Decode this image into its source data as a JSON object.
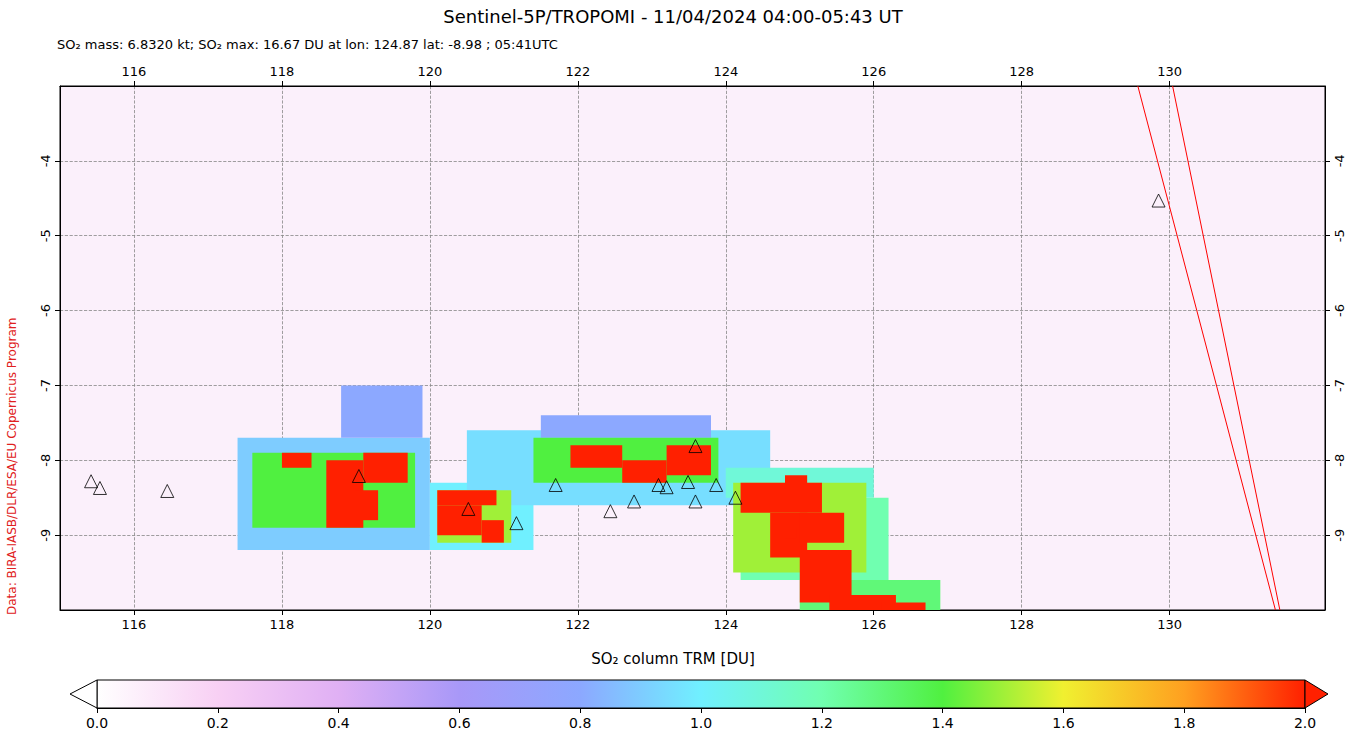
{
  "chart_data": {
    "type": "heatmap",
    "title": "Sentinel-5P/TROPOMI - 11/04/2024 04:00-05:43 UT",
    "subtitle": "SO₂ mass: 6.8320 kt; SO₂ max: 16.67 DU at lon: 124.87 lat: -8.98 ; 05:41UTC",
    "source": "Data: BIRA-IASB/DLR/ESA/EU Copernicus Program",
    "xlim": [
      115,
      132.1
    ],
    "ylim": [
      -10,
      -3
    ],
    "xticks": [
      116,
      118,
      120,
      122,
      124,
      126,
      128,
      130
    ],
    "yticks": [
      -4,
      -5,
      -6,
      -7,
      -8,
      -9
    ],
    "cells": [
      {
        "lon": [
          117.4,
          120.0
        ],
        "lat": [
          -9.2,
          -7.7
        ],
        "value": 0.9
      },
      {
        "lon": [
          118.8,
          119.9
        ],
        "lat": [
          -7.7,
          -7.0
        ],
        "value": 0.8
      },
      {
        "lon": [
          120.0,
          121.4
        ],
        "lat": [
          -9.2,
          -8.3
        ],
        "value": 1.0
      },
      {
        "lon": [
          120.5,
          124.6
        ],
        "lat": [
          -8.6,
          -7.6
        ],
        "value": 0.95
      },
      {
        "lon": [
          121.5,
          123.8
        ],
        "lat": [
          -7.7,
          -7.4
        ],
        "value": 0.8
      },
      {
        "lon": [
          124.0,
          126.0
        ],
        "lat": [
          -8.5,
          -8.1
        ],
        "value": 1.1
      },
      {
        "lon": [
          124.2,
          126.2
        ],
        "lat": [
          -9.6,
          -8.5
        ],
        "value": 1.2
      },
      {
        "lon": [
          125.0,
          126.9
        ],
        "lat": [
          -10.0,
          -9.6
        ],
        "value": 1.3
      },
      {
        "lon": [
          117.6,
          119.8
        ],
        "lat": [
          -8.9,
          -7.9
        ],
        "value": 1.4
      },
      {
        "lon": [
          120.1,
          121.1
        ],
        "lat": [
          -9.1,
          -8.4
        ],
        "value": 1.5
      },
      {
        "lon": [
          121.4,
          123.9
        ],
        "lat": [
          -8.3,
          -7.7
        ],
        "value": 1.4
      },
      {
        "lon": [
          124.1,
          125.9
        ],
        "lat": [
          -9.5,
          -8.3
        ],
        "value": 1.5
      },
      {
        "lon": [
          118.0,
          118.4
        ],
        "lat": [
          -8.1,
          -7.9
        ],
        "value": 2.4
      },
      {
        "lon": [
          118.6,
          119.1
        ],
        "lat": [
          -8.9,
          -8.0
        ],
        "value": 3.2
      },
      {
        "lon": [
          119.1,
          119.7
        ],
        "lat": [
          -8.3,
          -7.9
        ],
        "value": 3.0
      },
      {
        "lon": [
          119.0,
          119.3
        ],
        "lat": [
          -8.8,
          -8.4
        ],
        "value": 2.5
      },
      {
        "lon": [
          120.1,
          120.9
        ],
        "lat": [
          -8.6,
          -8.4
        ],
        "value": 3.5
      },
      {
        "lon": [
          120.1,
          120.7
        ],
        "lat": [
          -9.0,
          -8.6
        ],
        "value": 4.2
      },
      {
        "lon": [
          120.7,
          121.0
        ],
        "lat": [
          -9.1,
          -8.8
        ],
        "value": 2.6
      },
      {
        "lon": [
          121.9,
          122.6
        ],
        "lat": [
          -8.1,
          -7.8
        ],
        "value": 3.1
      },
      {
        "lon": [
          122.6,
          123.2
        ],
        "lat": [
          -8.3,
          -8.0
        ],
        "value": 2.8
      },
      {
        "lon": [
          123.2,
          123.8
        ],
        "lat": [
          -8.2,
          -7.8
        ],
        "value": 3.3
      },
      {
        "lon": [
          124.8,
          125.1
        ],
        "lat": [
          -8.4,
          -8.2
        ],
        "value": 2.2
      },
      {
        "lon": [
          124.2,
          125.3
        ],
        "lat": [
          -8.7,
          -8.3
        ],
        "value": 4.5
      },
      {
        "lon": [
          124.6,
          125.1
        ],
        "lat": [
          -9.3,
          -8.7
        ],
        "value": 8.0
      },
      {
        "lon": [
          125.0,
          125.6
        ],
        "lat": [
          -9.1,
          -8.7
        ],
        "value": 3.0
      },
      {
        "lon": [
          125.0,
          125.7
        ],
        "lat": [
          -9.9,
          -9.2
        ],
        "value": 5.2
      },
      {
        "lon": [
          125.4,
          126.3
        ],
        "lat": [
          -10.0,
          -9.8
        ],
        "value": 4.0
      },
      {
        "lon": [
          126.1,
          126.7
        ],
        "lat": [
          -10.0,
          -9.9
        ],
        "value": 2.5
      },
      {
        "lon": [
          124.8,
          124.95
        ],
        "lat": [
          -9.05,
          -8.9
        ],
        "value": 16.67
      }
    ],
    "colorbar": {
      "label": "SO₂ column TRM [DU]",
      "range": [
        0,
        2
      ],
      "ticks": [
        {
          "value": 0,
          "label": "0.0"
        },
        {
          "value": 0.2,
          "label": "0.2"
        },
        {
          "value": 0.4,
          "label": "0.4"
        },
        {
          "value": 0.6,
          "label": "0.6"
        },
        {
          "value": 0.8,
          "label": "0.8"
        },
        {
          "value": 1,
          "label": "1.0"
        },
        {
          "value": 1.2,
          "label": "1.2"
        },
        {
          "value": 1.4,
          "label": "1.4"
        },
        {
          "value": 1.6,
          "label": "1.6"
        },
        {
          "value": 1.8,
          "label": "1.8"
        },
        {
          "value": 2,
          "label": "2.0"
        }
      ],
      "colors": [
        "#ffffff",
        "#f8d0f4",
        "#e0b0f4",
        "#a898f8",
        "#8ca8ff",
        "#70f0ff",
        "#70ffb0",
        "#50f040",
        "#f0f030",
        "#ffa020",
        "#ff2000"
      ]
    },
    "volcanoes": {
      "marker": "triangle",
      "color": "#000000",
      "points": [
        [
          115.42,
          -8.28
        ],
        [
          115.54,
          -8.37
        ],
        [
          116.45,
          -8.41
        ],
        [
          119.04,
          -8.21
        ],
        [
          120.52,
          -8.65
        ],
        [
          121.17,
          -8.84
        ],
        [
          121.7,
          -8.33
        ],
        [
          122.44,
          -8.68
        ],
        [
          122.76,
          -8.55
        ],
        [
          123.09,
          -8.33
        ],
        [
          123.2,
          -8.36
        ],
        [
          123.49,
          -8.29
        ],
        [
          123.59,
          -8.55
        ],
        [
          123.59,
          -7.81
        ],
        [
          123.87,
          -8.33
        ],
        [
          124.13,
          -8.5
        ],
        [
          129.85,
          -4.53
        ]
      ]
    },
    "swath_edges": {
      "color": "#ff0000",
      "lines": [
        [
          [
            129.57,
            -3
          ],
          [
            131.43,
            -10
          ]
        ],
        [
          [
            130.04,
            -3
          ],
          [
            131.49,
            -10
          ]
        ]
      ]
    }
  }
}
